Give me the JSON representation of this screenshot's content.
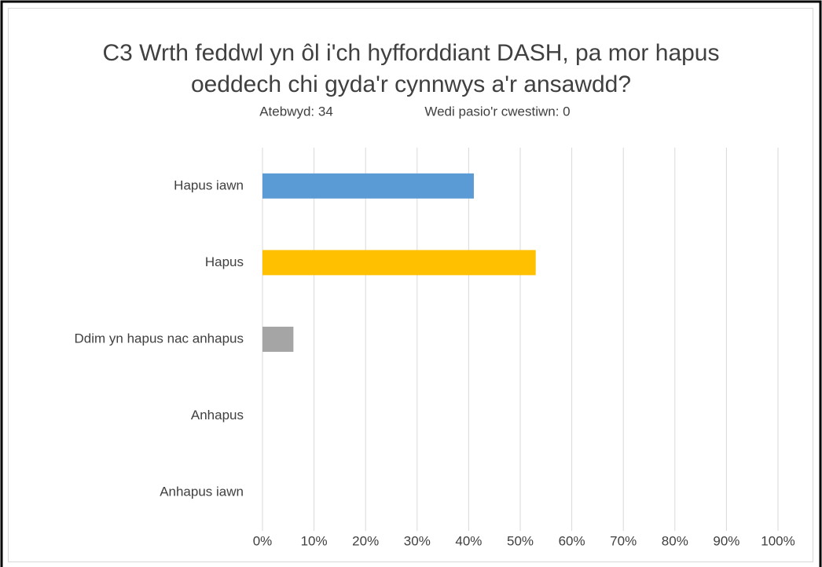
{
  "chart_data": {
    "type": "bar",
    "orientation": "horizontal",
    "title": "C3 Wrth feddwl yn ôl i'ch hyfforddiant DASH, pa mor hapus oeddech chi gyda'r cynnwys a'r ansawdd?",
    "subtitles": [
      "Atebwyd: 34",
      "Wedi pasio'r cwestiwn: 0"
    ],
    "categories": [
      "Hapus iawn",
      "Hapus",
      "Ddim yn hapus nac anhapus",
      "Anhapus",
      "Anhapus iawn"
    ],
    "values": [
      41,
      53,
      6,
      0,
      0
    ],
    "colors": [
      "#5b9bd5",
      "#ffc000",
      "#a5a5a5",
      "#ed7d31",
      "#4472c4"
    ],
    "xlim": [
      0,
      100
    ],
    "xticks": [
      {
        "value": 0,
        "label": "0%"
      },
      {
        "value": 10,
        "label": "10%"
      },
      {
        "value": 20,
        "label": "20%"
      },
      {
        "value": 30,
        "label": "30%"
      },
      {
        "value": 40,
        "label": "40%"
      },
      {
        "value": 50,
        "label": "50%"
      },
      {
        "value": 60,
        "label": "60%"
      },
      {
        "value": 70,
        "label": "70%"
      },
      {
        "value": 80,
        "label": "80%"
      },
      {
        "value": 90,
        "label": "90%"
      },
      {
        "value": 100,
        "label": "100%"
      }
    ],
    "grid": true
  }
}
